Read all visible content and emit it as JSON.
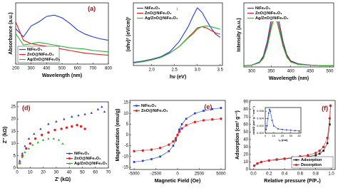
{
  "chart_data": [
    {
      "type": "line",
      "label": "(a)",
      "xlabel": "Wavelength (nm)",
      "ylabel": "Absorbance (a.u.)",
      "xlim": [
        200,
        800
      ],
      "ylim": [
        0.1,
        1.0
      ],
      "xticks": [
        200,
        300,
        400,
        500,
        600,
        700,
        800
      ],
      "legend": "lower left",
      "x": [
        200,
        250,
        300,
        350,
        400,
        450,
        500,
        550,
        600,
        650,
        700,
        750,
        800
      ],
      "series": [
        {
          "name": "NiFe₂O₄",
          "color": "#1f3fd6",
          "values": [
            0.62,
            0.5,
            0.66,
            0.72,
            0.8,
            0.82,
            0.78,
            0.7,
            0.6,
            0.54,
            0.5,
            0.47,
            0.45
          ]
        },
        {
          "name": "ZnO@NiFe₂O₄",
          "color": "#e02020",
          "values": [
            0.72,
            0.45,
            0.4,
            0.38,
            0.36,
            0.34,
            0.32,
            0.3,
            0.28,
            0.26,
            0.25,
            0.24,
            0.23
          ]
        },
        {
          "name": "Ag/ZnO@NiFe₂O₄",
          "color": "#2bb52b",
          "values": [
            0.55,
            0.38,
            0.4,
            0.42,
            0.4,
            0.38,
            0.36,
            0.34,
            0.33,
            0.32,
            0.3,
            0.29,
            0.28
          ]
        }
      ]
    },
    {
      "type": "line",
      "label": "(b)",
      "xlabel": "hν (eV)",
      "ylabel": "(αhν)² (eV/cm)²",
      "xlim": [
        1.6,
        3.55
      ],
      "ylim": [
        0,
        1
      ],
      "xticks": [
        {
          "value": 2,
          "label": "2.0"
        },
        2.5,
        {
          "value": 3,
          "label": "3.0"
        },
        3.5
      ],
      "legend": "upper left",
      "x": [
        1.6,
        1.8,
        2.0,
        2.2,
        2.4,
        2.6,
        2.8,
        2.9,
        3.0,
        3.1,
        3.2,
        3.3,
        3.4,
        3.5
      ],
      "series": [
        {
          "name": "NiFe₂O₄",
          "color": "#1f3fd6",
          "values": [
            0.05,
            0.07,
            0.1,
            0.14,
            0.22,
            0.38,
            0.62,
            0.78,
            0.92,
            0.85,
            0.72,
            0.6,
            0.5,
            0.45
          ]
        },
        {
          "name": "ZnO@NiFe₂O₄",
          "color": "#e02020",
          "values": [
            0.04,
            0.06,
            0.09,
            0.13,
            0.2,
            0.3,
            0.45,
            0.52,
            0.6,
            0.62,
            0.6,
            0.56,
            0.52,
            0.5
          ]
        },
        {
          "name": "Ag/ZnO@NiFe₂O₄",
          "color": "#2bb52b",
          "values": [
            0.04,
            0.06,
            0.09,
            0.13,
            0.2,
            0.3,
            0.44,
            0.5,
            0.58,
            0.62,
            0.63,
            0.62,
            0.6,
            0.58
          ]
        }
      ]
    },
    {
      "type": "line",
      "label": "(c)",
      "xlabel": "Wavelength (nm)",
      "ylabel": "Intensity (a.u.)",
      "xlim": [
        280,
        510
      ],
      "ylim": [
        0,
        1.05
      ],
      "xticks": [
        300,
        350,
        400,
        450,
        500
      ],
      "legend": "upper left",
      "x": [
        280,
        300,
        320,
        330,
        340,
        350,
        355,
        360,
        365,
        370,
        380,
        390,
        400,
        420,
        450,
        480,
        510
      ],
      "series": [
        {
          "name": "NiFe₂O₄",
          "color": "#1f3fd6",
          "values": [
            0.02,
            0.03,
            0.08,
            0.18,
            0.42,
            0.78,
            0.92,
            0.96,
            0.9,
            0.75,
            0.42,
            0.2,
            0.1,
            0.05,
            0.03,
            0.02,
            0.02
          ]
        },
        {
          "name": "ZnO@NiFe₂O₄",
          "color": "#e02020",
          "values": [
            0.02,
            0.03,
            0.07,
            0.16,
            0.37,
            0.69,
            0.81,
            0.85,
            0.8,
            0.66,
            0.37,
            0.18,
            0.09,
            0.04,
            0.03,
            0.02,
            0.02
          ]
        },
        {
          "name": "Ag/ZnO@NiFe₂O₄",
          "color": "#2bb52b",
          "values": [
            0.02,
            0.03,
            0.07,
            0.14,
            0.33,
            0.63,
            0.74,
            0.78,
            0.73,
            0.61,
            0.34,
            0.16,
            0.08,
            0.04,
            0.03,
            0.02,
            0.02
          ]
        }
      ]
    },
    {
      "type": "scatter",
      "label": "(d)",
      "xlabel": "Z' (kΩ)",
      "ylabel": "Z'' (kΩ)",
      "xlim": [
        0,
        70
      ],
      "ylim": [
        0,
        27
      ],
      "xticks": [
        0,
        10,
        20,
        30,
        40,
        50,
        60,
        70
      ],
      "yticks": [
        0,
        5,
        10,
        15,
        20,
        25
      ],
      "legend": "lower right",
      "series": [
        {
          "name": "NiFe₂O₄",
          "color": "#1f3fd6",
          "marker": "triangle",
          "x": [
            2,
            4,
            6,
            9,
            13,
            18,
            24,
            30,
            36,
            42,
            47,
            52,
            57,
            62,
            65,
            67
          ],
          "values": [
            3,
            6,
            9,
            12,
            14,
            16,
            18,
            19,
            20,
            21,
            21.5,
            22,
            22.5,
            24,
            25,
            23
          ]
        },
        {
          "name": "ZnO@NiFe₂O₄",
          "color": "#e02020",
          "marker": "circle",
          "x": [
            2,
            4,
            7,
            10,
            14,
            19,
            24,
            29,
            34,
            38,
            42,
            46,
            49,
            52
          ],
          "values": [
            2,
            5,
            8,
            10,
            12,
            13.5,
            14.5,
            15.5,
            16,
            16.5,
            17,
            17.5,
            17,
            16
          ]
        },
        {
          "name": "Ag/ZnO@NiFe₂O₄",
          "color": "#2bb52b",
          "marker": "triangle",
          "x": [
            2,
            4,
            6,
            9,
            12,
            16,
            20,
            24,
            28,
            32,
            35
          ],
          "values": [
            2,
            4.5,
            6.5,
            8,
            9.5,
            10.5,
            11.5,
            12,
            12,
            11.5,
            10
          ]
        }
      ]
    },
    {
      "type": "line",
      "label": "(e)",
      "xlabel": "Magnetic Field (Oe)",
      "ylabel": "Magnetization (emu/g)",
      "xlim": [
        -5500,
        5500
      ],
      "ylim": [
        -16,
        16
      ],
      "xticks": [
        -5000,
        -2500,
        0,
        2500,
        5000
      ],
      "yticks": [
        -15,
        -10,
        -5,
        0,
        5,
        10,
        15
      ],
      "legend": "upper left",
      "x": [
        -5000,
        -4000,
        -3000,
        -2000,
        -1000,
        -500,
        -200,
        0,
        200,
        500,
        1000,
        2000,
        3000,
        4000,
        5000
      ],
      "series": [
        {
          "name": "NiFe₂O₄",
          "color": "#1f3fd6",
          "marker": "square",
          "values": [
            -12.5,
            -12,
            -11.2,
            -10,
            -7.5,
            -5,
            -2.5,
            0,
            2.5,
            5,
            7.5,
            10,
            11.2,
            12,
            12.5
          ]
        },
        {
          "name": "ZnO@NiFe₂O₄",
          "color": "#e02020",
          "marker": "circle",
          "values": [
            -7.5,
            -7.2,
            -6.8,
            -6,
            -4.5,
            -3,
            -1.5,
            0,
            1.5,
            3,
            4.5,
            6,
            6.8,
            7.2,
            7.5
          ]
        }
      ]
    },
    {
      "type": "line",
      "label": "(f)",
      "xlabel": "Relative pressure (P/P₀)",
      "ylabel": "Adsorption (cm³ g⁻¹)",
      "xlim": [
        -0.05,
        1.05
      ],
      "ylim": [
        0,
        92
      ],
      "xticks": [
        {
          "value": 0,
          "label": "0.0"
        },
        0.2,
        0.4,
        0.6,
        0.8,
        {
          "value": 1,
          "label": "1.0"
        }
      ],
      "yticks": [
        0,
        10,
        20,
        30,
        40,
        50,
        60,
        70,
        80,
        90
      ],
      "legend": "lower right",
      "x": [
        0.01,
        0.05,
        0.1,
        0.2,
        0.3,
        0.4,
        0.5,
        0.6,
        0.7,
        0.8,
        0.85,
        0.9,
        0.95,
        0.98,
        0.99
      ],
      "series": [
        {
          "name": "Adsorption",
          "color": "#222222",
          "marker": "square",
          "values": [
            5,
            8,
            10,
            12,
            13,
            14,
            15,
            16,
            17,
            19,
            21,
            25,
            35,
            60,
            85
          ]
        },
        {
          "name": "Desorption",
          "color": "#e02020",
          "marker": "circle",
          "values": [
            5,
            8,
            10,
            12,
            13.5,
            14.5,
            16,
            17.5,
            19,
            22,
            25,
            30,
            42,
            68,
            85
          ]
        }
      ]
    },
    {
      "type": "line",
      "xlabel": "rₚ (nm)",
      "ylabel": "dv/dD (cm³ g⁻¹ nm⁻¹)",
      "xlim": [
        0,
        42
      ],
      "ylim": [
        0,
        0.007
      ],
      "xticks": [
        0,
        10,
        20,
        30,
        40
      ],
      "yticks": [
        {
          "value": 0,
          "label": "0.000"
        },
        0.002,
        0.004,
        0.006
      ],
      "x": [
        1,
        2,
        3,
        4,
        5,
        6,
        8,
        10,
        15,
        20,
        25,
        30,
        35,
        40
      ],
      "series": [
        {
          "color": "#1f3fd6",
          "marker": "circle",
          "values": [
            0.001,
            0.002,
            0.004,
            0.0055,
            0.0065,
            0.006,
            0.0035,
            0.002,
            0.0012,
            0.001,
            0.0009,
            0.0008,
            0.0007,
            0.0006
          ]
        }
      ]
    }
  ]
}
